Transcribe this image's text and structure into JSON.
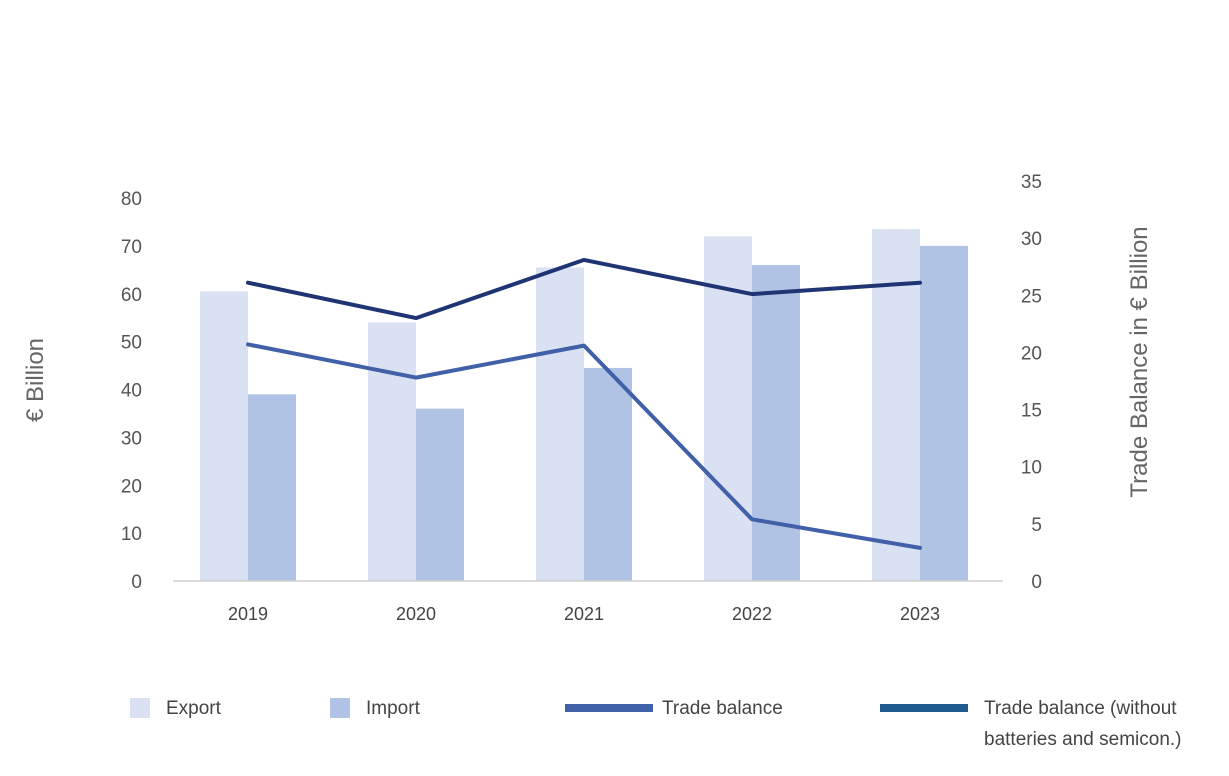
{
  "chart_data": {
    "type": "bar",
    "categories": [
      "2019",
      "2020",
      "2021",
      "2022",
      "2023"
    ],
    "series": [
      {
        "name": "Export",
        "kind": "bar",
        "axis": "left",
        "color": "#d9e1f2",
        "values": [
          60.5,
          54,
          65.5,
          72,
          73.5
        ]
      },
      {
        "name": "Import",
        "kind": "bar",
        "axis": "left",
        "color": "#b0c3e4",
        "values": [
          39,
          36,
          44.5,
          66,
          70
        ]
      },
      {
        "name": "Trade balance",
        "kind": "line",
        "axis": "right",
        "color": "#4060a8",
        "values": [
          20.7,
          17.8,
          20.6,
          5.4,
          2.9
        ]
      },
      {
        "name": "Trade balance (without batteries and semicon.)",
        "kind": "line",
        "axis": "right",
        "color": "#1f3473",
        "values": [
          26.1,
          23.0,
          28.1,
          25.1,
          26.1
        ]
      }
    ],
    "yaxis_left": {
      "title": "€ Billion",
      "range": [
        0,
        80
      ],
      "ticks": [
        "0",
        "10",
        "20",
        "30",
        "40",
        "50",
        "60",
        "70",
        "80"
      ]
    },
    "yaxis_right": {
      "title": "Trade Balance in € Billion",
      "range": [
        0,
        35
      ],
      "ticks": [
        "0",
        "5",
        "10",
        "15",
        "20",
        "25",
        "30",
        "35"
      ]
    },
    "legend": {
      "position": "bottom",
      "items": [
        {
          "label": "Export",
          "swatch": "box",
          "color": "#d9e1f2"
        },
        {
          "label": "Import",
          "swatch": "box",
          "color": "#b0c3e4"
        },
        {
          "label": "Trade balance",
          "swatch": "line",
          "color": "#4060a8"
        },
        {
          "label": "Trade balance (without",
          "label2": "batteries and semicon.)",
          "swatch": "line",
          "color": "#1f5a8f"
        }
      ]
    },
    "grid": false
  }
}
